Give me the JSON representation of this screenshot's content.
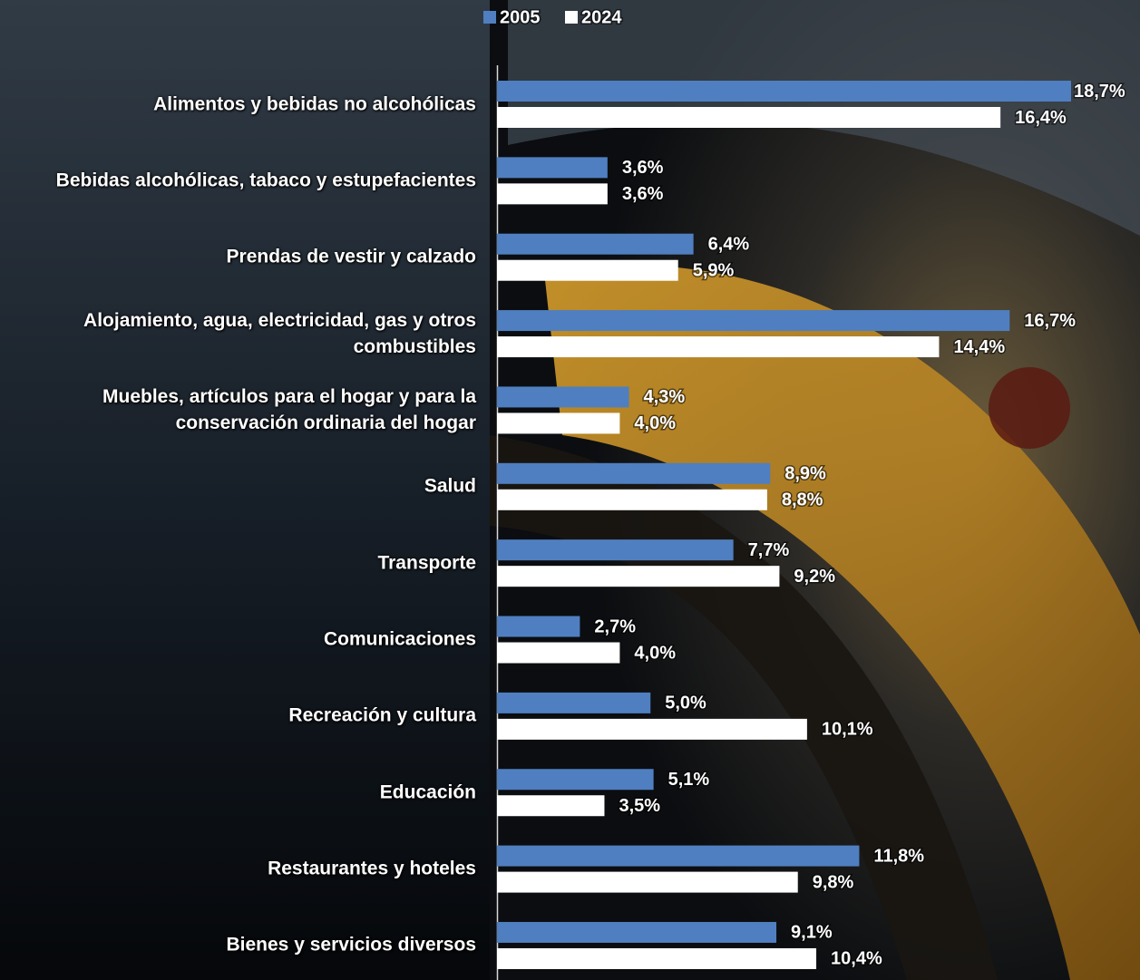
{
  "chart_data": {
    "type": "bar",
    "orientation": "horizontal",
    "categories": [
      "Alimentos y bebidas no alcohólicas",
      "Bebidas alcohólicas, tabaco y estupefacientes",
      "Prendas de vestir y calzado",
      "Alojamiento, agua, electricidad, gas y otros combustibles",
      "Muebles, artículos para el hogar y para la conservación ordinaria del hogar",
      "Salud",
      "Transporte",
      "Comunicaciones",
      "Recreación y cultura",
      "Educación",
      "Restaurantes y hoteles",
      "Bienes y servicios diversos"
    ],
    "series": [
      {
        "name": "2005",
        "color": "#4f7fc0",
        "values": [
          18.7,
          3.6,
          6.4,
          16.7,
          4.3,
          8.9,
          7.7,
          2.7,
          5.0,
          5.1,
          11.8,
          9.1
        ],
        "value_labels": [
          "18,7%",
          "3,6%",
          "6,4%",
          "16,7%",
          "4,3%",
          "8,9%",
          "7,7%",
          "2,7%",
          "5,0%",
          "5,1%",
          "11,8%",
          "9,1%"
        ]
      },
      {
        "name": "2024",
        "color": "#ffffff",
        "values": [
          16.4,
          3.6,
          5.9,
          14.4,
          4.0,
          8.8,
          9.2,
          4.0,
          10.1,
          3.5,
          9.8,
          10.4
        ],
        "value_labels": [
          "16,4%",
          "3,6%",
          "5,9%",
          "14,4%",
          "4,0%",
          "8,8%",
          "9,2%",
          "4,0%",
          "10,1%",
          "3,5%",
          "9,8%",
          "10,4%"
        ]
      }
    ],
    "legend": "top"
  }
}
